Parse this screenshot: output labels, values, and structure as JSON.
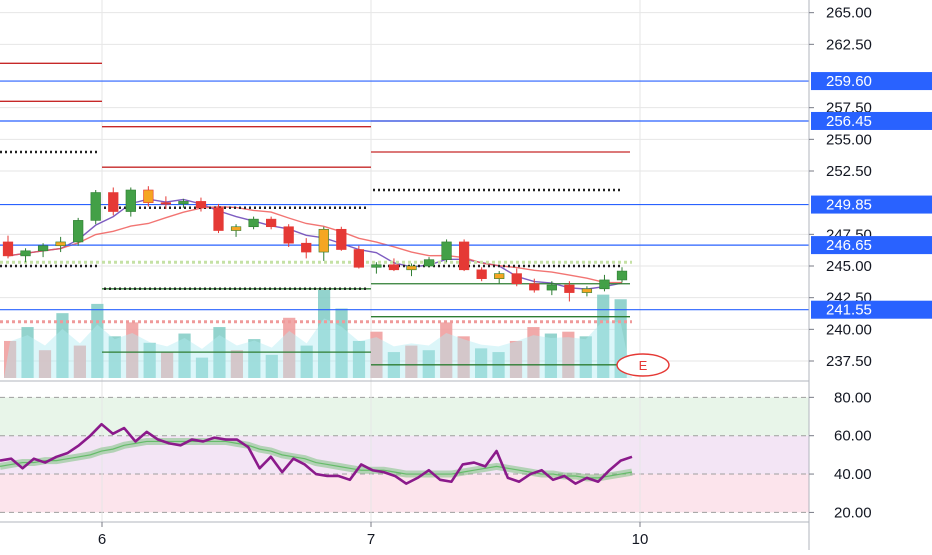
{
  "chart_data": [
    {
      "type": "candlestick",
      "title": "",
      "ylim": [
        236.0,
        266.0
      ],
      "y_ticks": [
        {
          "value": 265.0,
          "label": "265.00"
        },
        {
          "value": 262.5,
          "label": "262.50"
        },
        {
          "value": 257.5,
          "label": "257.50"
        },
        {
          "value": 255.0,
          "label": "255.00"
        },
        {
          "value": 252.5,
          "label": "252.50"
        },
        {
          "value": 247.5,
          "label": "247.50"
        },
        {
          "value": 245.0,
          "label": "245.00"
        },
        {
          "value": 242.5,
          "label": "242.50"
        },
        {
          "value": 240.0,
          "label": "240.00"
        },
        {
          "value": 237.5,
          "label": "237.50"
        }
      ],
      "price_labels": [
        {
          "value": 259.6,
          "label": "259.60"
        },
        {
          "value": 256.45,
          "label": "256.45"
        },
        {
          "value": 249.85,
          "label": "249.85"
        },
        {
          "value": 246.65,
          "label": "246.65"
        },
        {
          "value": 241.55,
          "label": "241.55"
        }
      ],
      "x_ticks": [
        {
          "label": "6"
        },
        {
          "label": "7"
        },
        {
          "label": "10"
        }
      ],
      "candles": [
        {
          "o": 246.9,
          "h": 247.4,
          "l": 245.6,
          "c": 245.8
        },
        {
          "o": 245.8,
          "h": 246.4,
          "l": 245.3,
          "c": 246.2
        },
        {
          "o": 246.2,
          "h": 246.8,
          "l": 245.7,
          "c": 246.6
        },
        {
          "o": 246.6,
          "h": 247.3,
          "l": 246.1,
          "c": 246.9
        },
        {
          "o": 246.9,
          "h": 248.8,
          "l": 246.6,
          "c": 248.6
        },
        {
          "o": 248.6,
          "h": 251.0,
          "l": 248.3,
          "c": 250.8
        },
        {
          "o": 250.8,
          "h": 251.2,
          "l": 249.0,
          "c": 249.3
        },
        {
          "o": 249.3,
          "h": 251.2,
          "l": 248.9,
          "c": 251.0
        },
        {
          "o": 251.0,
          "h": 251.3,
          "l": 249.7,
          "c": 250.0
        },
        {
          "o": 250.0,
          "h": 250.5,
          "l": 249.5,
          "c": 249.9
        },
        {
          "o": 249.9,
          "h": 250.3,
          "l": 249.6,
          "c": 250.1
        },
        {
          "o": 250.1,
          "h": 250.4,
          "l": 249.3,
          "c": 249.6
        },
        {
          "o": 249.6,
          "h": 249.9,
          "l": 247.6,
          "c": 247.8
        },
        {
          "o": 247.8,
          "h": 248.3,
          "l": 247.3,
          "c": 248.1
        },
        {
          "o": 248.1,
          "h": 248.9,
          "l": 247.9,
          "c": 248.7
        },
        {
          "o": 248.7,
          "h": 248.9,
          "l": 247.9,
          "c": 248.1
        },
        {
          "o": 248.1,
          "h": 248.3,
          "l": 246.5,
          "c": 246.8
        },
        {
          "o": 246.8,
          "h": 247.2,
          "l": 245.6,
          "c": 246.1
        },
        {
          "o": 246.1,
          "h": 248.1,
          "l": 245.4,
          "c": 247.9
        },
        {
          "o": 247.9,
          "h": 248.1,
          "l": 246.2,
          "c": 246.3
        },
        {
          "o": 246.3,
          "h": 246.6,
          "l": 244.8,
          "c": 244.9
        },
        {
          "o": 244.9,
          "h": 245.3,
          "l": 244.4,
          "c": 245.1
        },
        {
          "o": 245.1,
          "h": 245.6,
          "l": 244.6,
          "c": 244.7
        },
        {
          "o": 244.7,
          "h": 245.2,
          "l": 244.2,
          "c": 245.0
        },
        {
          "o": 245.0,
          "h": 245.7,
          "l": 244.9,
          "c": 245.5
        },
        {
          "o": 245.5,
          "h": 247.1,
          "l": 245.3,
          "c": 246.9
        },
        {
          "o": 246.9,
          "h": 247.1,
          "l": 244.6,
          "c": 244.7
        },
        {
          "o": 244.7,
          "h": 244.9,
          "l": 243.8,
          "c": 244.0
        },
        {
          "o": 244.0,
          "h": 244.6,
          "l": 243.6,
          "c": 244.4
        },
        {
          "o": 244.4,
          "h": 244.8,
          "l": 243.4,
          "c": 243.6
        },
        {
          "o": 243.6,
          "h": 244.0,
          "l": 242.9,
          "c": 243.1
        },
        {
          "o": 243.1,
          "h": 243.8,
          "l": 242.7,
          "c": 243.5
        },
        {
          "o": 243.5,
          "h": 243.8,
          "l": 242.2,
          "c": 242.9
        },
        {
          "o": 242.9,
          "h": 243.4,
          "l": 242.6,
          "c": 243.2
        },
        {
          "o": 243.2,
          "h": 244.3,
          "l": 243.0,
          "c": 243.9
        },
        {
          "o": 243.9,
          "h": 244.9,
          "l": 243.7,
          "c": 244.6
        }
      ],
      "volume": [
        {
          "v": 40,
          "up": false
        },
        {
          "v": 55,
          "up": true
        },
        {
          "v": 30,
          "up": false
        },
        {
          "v": 70,
          "up": true
        },
        {
          "v": 35,
          "up": false
        },
        {
          "v": 80,
          "up": true
        },
        {
          "v": 45,
          "up": true
        },
        {
          "v": 60,
          "up": false
        },
        {
          "v": 38,
          "up": true
        },
        {
          "v": 28,
          "up": false
        },
        {
          "v": 48,
          "up": true
        },
        {
          "v": 22,
          "up": true
        },
        {
          "v": 55,
          "up": true
        },
        {
          "v": 30,
          "up": false
        },
        {
          "v": 42,
          "up": true
        },
        {
          "v": 25,
          "up": true
        },
        {
          "v": 65,
          "up": false
        },
        {
          "v": 35,
          "up": true
        },
        {
          "v": 95,
          "up": true
        },
        {
          "v": 75,
          "up": true
        },
        {
          "v": 40,
          "up": true
        },
        {
          "v": 50,
          "up": false
        },
        {
          "v": 28,
          "up": true
        },
        {
          "v": 35,
          "up": false
        },
        {
          "v": 30,
          "up": true
        },
        {
          "v": 60,
          "up": false
        },
        {
          "v": 45,
          "up": false
        },
        {
          "v": 32,
          "up": true
        },
        {
          "v": 28,
          "up": true
        },
        {
          "v": 40,
          "up": false
        },
        {
          "v": 55,
          "up": false
        },
        {
          "v": 48,
          "up": true
        },
        {
          "v": 50,
          "up": false
        },
        {
          "v": 45,
          "up": true
        },
        {
          "v": 90,
          "up": true
        },
        {
          "v": 85,
          "up": true
        }
      ],
      "horizontal_lines": [
        {
          "value": 259.6,
          "color": "#2962ff"
        },
        {
          "value": 256.45,
          "color": "#2962ff"
        },
        {
          "value": 249.85,
          "color": "#2962ff"
        },
        {
          "value": 246.65,
          "color": "#2962ff"
        },
        {
          "value": 241.55,
          "color": "#2962ff"
        }
      ],
      "annotation_marker": "E",
      "colors": {
        "up": "#26a69a",
        "down": "#ef5350",
        "level": "#2962ff",
        "label_bg": "#2962ff",
        "grid": "#e6e6e6"
      }
    },
    {
      "type": "line",
      "ylim": [
        15,
        88
      ],
      "y_ticks": [
        {
          "value": 80,
          "label": "80.00"
        },
        {
          "value": 60,
          "label": "60.00"
        },
        {
          "value": 40,
          "label": "40.00"
        },
        {
          "value": 20,
          "label": "20.00"
        }
      ],
      "bands": [
        {
          "from": 60,
          "to": 80,
          "color": "#e8f5e9"
        },
        {
          "from": 40,
          "to": 60,
          "color": "#f3e5f5"
        },
        {
          "from": 20,
          "to": 40,
          "color": "#fce4ec"
        }
      ],
      "series": [
        {
          "color": "#8b1a8b",
          "values": [
            47,
            48,
            43,
            48,
            46,
            49,
            51,
            55,
            60,
            66,
            61,
            64,
            57,
            62,
            58,
            56,
            55,
            58,
            57,
            59,
            58,
            58,
            54,
            43,
            49,
            41,
            48,
            45,
            40,
            39,
            39,
            37,
            45,
            42,
            41,
            39,
            35,
            38,
            42,
            37,
            36,
            45,
            46,
            44,
            52,
            38,
            36,
            40,
            42,
            37,
            39,
            35,
            38,
            36,
            42,
            47,
            49
          ]
        },
        {
          "color": "#66bb6a",
          "values": [
            44,
            45,
            46,
            46,
            47,
            47,
            48,
            49,
            50,
            52,
            53,
            55,
            56,
            57,
            57,
            57,
            57,
            57,
            57,
            57,
            57,
            56,
            55,
            53,
            52,
            50,
            49,
            48,
            46,
            45,
            44,
            43,
            42,
            42,
            42,
            41,
            40,
            40,
            40,
            40,
            40,
            41,
            42,
            43,
            44,
            43,
            42,
            41,
            40,
            40,
            39,
            39,
            38,
            38,
            39,
            40,
            41
          ]
        }
      ]
    }
  ]
}
